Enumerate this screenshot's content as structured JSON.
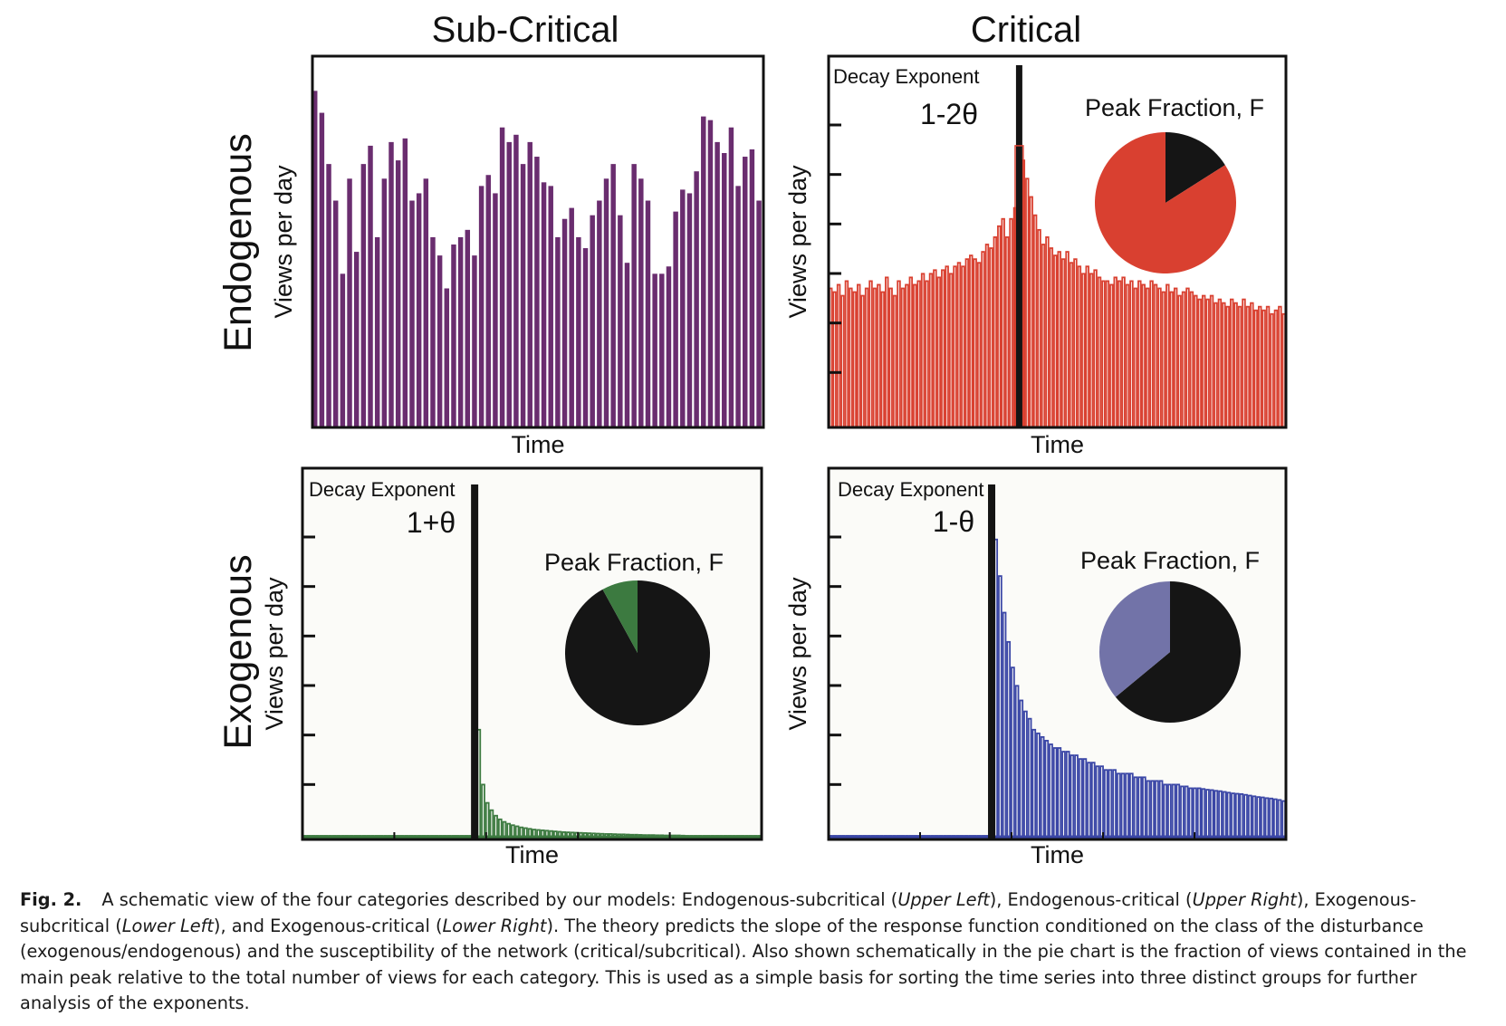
{
  "figure": {
    "column_titles": [
      "Sub-Critical",
      "Critical"
    ],
    "row_titles": [
      "Endogenous",
      "Exogenous"
    ],
    "xlabel": "Time",
    "ylabel": "Views per day",
    "colors": {
      "endogenous_subcritical": "#6a2d6f",
      "endogenous_critical": "#d94030",
      "exogenous_subcritical": "#3c7a40",
      "exogenous_critical": "#3a46a6",
      "pie_black": "#151515",
      "pie_blue": "#7273a8"
    }
  },
  "chart_data": [
    {
      "name": "endogenous-subcritical",
      "type": "bar",
      "title": "Sub-Critical",
      "row_label": "Endogenous",
      "xlabel": "Time",
      "ylabel": "Views per day",
      "ylim": [
        0,
        100
      ],
      "values": [
        92,
        86,
        72,
        62,
        42,
        68,
        48,
        72,
        77,
        52,
        68,
        78,
        73,
        79,
        62,
        64,
        68,
        52,
        47,
        38,
        50,
        52,
        54,
        47,
        66,
        69,
        64,
        82,
        78,
        80,
        72,
        78,
        74,
        67,
        66,
        52,
        57,
        60,
        52,
        49,
        58,
        62,
        68,
        72,
        58,
        45,
        72,
        68,
        62,
        42,
        42,
        44,
        59,
        65,
        64,
        70,
        85,
        84,
        78,
        75,
        82,
        66,
        74,
        76,
        62
      ],
      "annotations": []
    },
    {
      "name": "endogenous-critical",
      "type": "bar",
      "title": "Critical",
      "row_label": "Endogenous",
      "xlabel": "Time",
      "ylabel": "Views per day",
      "ylim": [
        0,
        100
      ],
      "peak_index": 47,
      "values": [
        38,
        37,
        39,
        36,
        40,
        38,
        37,
        39,
        36,
        38,
        40,
        38,
        39,
        37,
        41,
        38,
        36,
        40,
        38,
        39,
        41,
        39,
        40,
        42,
        40,
        42,
        43,
        41,
        43,
        44,
        42,
        44,
        45,
        44,
        46,
        47,
        46,
        45,
        48,
        50,
        49,
        52,
        55,
        57,
        52,
        57,
        60,
        77,
        73,
        68,
        63,
        58,
        54,
        50,
        52,
        49,
        47,
        48,
        46,
        48,
        45,
        46,
        44,
        42,
        44,
        42,
        43,
        41,
        40,
        40,
        39,
        41,
        40,
        41,
        39,
        40,
        38,
        40,
        39,
        38,
        40,
        39,
        38,
        37,
        39,
        37,
        38,
        36,
        37,
        38,
        37,
        36,
        35,
        36,
        35,
        36,
        34,
        35,
        34,
        33,
        35,
        34,
        33,
        35,
        33,
        34,
        32,
        33,
        32,
        33,
        31,
        32,
        33,
        31
      ],
      "annotations": [
        "Decay Exponent",
        "1-2θ",
        "Peak Fraction, F"
      ],
      "pie": {
        "peak_fraction": 0.16,
        "labels": [
          "peak",
          "rest"
        ],
        "colors": [
          "#151515",
          "#d94030"
        ]
      }
    },
    {
      "name": "exogenous-subcritical",
      "type": "bar",
      "title": "",
      "row_label": "Exogenous",
      "xlabel": "Time",
      "ylabel": "Views per day",
      "ylim": [
        0,
        100
      ],
      "peak_index": 40,
      "values": [
        1,
        1,
        1,
        1,
        1,
        1,
        1,
        1,
        1,
        1,
        1,
        1,
        1,
        1,
        1,
        1,
        1,
        1,
        1,
        1,
        1,
        1,
        1,
        1,
        1,
        1,
        1,
        1,
        1,
        1,
        1,
        1,
        1,
        1,
        1,
        1,
        1,
        1,
        1,
        1,
        40,
        30,
        15,
        10,
        8,
        6.5,
        5.5,
        4.8,
        4.3,
        3.9,
        3.6,
        3.3,
        3.1,
        2.9,
        2.7,
        2.6,
        2.5,
        2.4,
        2.3,
        2.2,
        2.1,
        2,
        1.95,
        1.9,
        1.85,
        1.8,
        1.75,
        1.7,
        1.65,
        1.6,
        1.55,
        1.5,
        1.5,
        1.45,
        1.4,
        1.4,
        1.35,
        1.3,
        1.3,
        1.25,
        1.2,
        1.2,
        1.2,
        1.15,
        1.15,
        1.1,
        1.1,
        1.1,
        1.1,
        1.05,
        1,
        1,
        1,
        1,
        1,
        1,
        1,
        1,
        1,
        1,
        1,
        1,
        1,
        1,
        1,
        1,
        1,
        1
      ],
      "annotations": [
        "Decay Exponent",
        "1+θ",
        "Peak Fraction, F"
      ],
      "pie": {
        "peak_fraction": 0.92,
        "labels": [
          "peak",
          "rest"
        ],
        "colors": [
          "#151515",
          "#3c7a40"
        ]
      }
    },
    {
      "name": "exogenous-critical",
      "type": "bar",
      "title": "",
      "row_label": "Exogenous",
      "xlabel": "Time",
      "ylabel": "Views per day",
      "ylim": [
        0,
        100
      ],
      "peak_index": 38,
      "values": [
        1,
        1,
        1,
        1,
        1,
        1,
        1,
        1,
        1,
        1,
        1,
        1,
        1,
        1,
        1,
        1,
        1,
        1,
        1,
        1,
        1,
        1,
        1,
        1,
        1,
        1,
        1,
        1,
        1,
        1,
        1,
        1,
        1,
        1,
        1,
        1,
        1,
        1,
        93,
        82,
        72,
        62,
        54,
        47,
        42,
        38,
        35,
        33,
        30,
        29,
        28,
        27,
        26,
        25,
        25,
        24,
        24,
        23,
        23,
        22,
        22,
        21,
        21,
        20,
        20,
        19,
        19,
        19,
        18,
        18,
        18,
        18,
        17,
        17,
        17,
        16,
        16,
        16,
        16,
        15,
        15,
        15,
        15,
        14.5,
        14.5,
        14,
        14,
        14,
        13.8,
        13.6,
        13.5,
        13.3,
        13.2,
        13,
        12.8,
        12.6,
        12.5,
        12.4,
        12.2,
        12,
        11.8,
        11.6,
        11.5,
        11.3,
        11.2,
        11,
        10.8,
        10.5
      ],
      "annotations": [
        "Decay Exponent",
        "1-θ",
        "Peak Fraction, F"
      ],
      "pie": {
        "peak_fraction": 0.64,
        "labels": [
          "peak",
          "rest"
        ],
        "colors": [
          "#151515",
          "#7273a8"
        ]
      }
    }
  ],
  "caption": {
    "label": "Fig. 2.",
    "segments": [
      {
        "text": "A schematic view of the four categories described by our models: Endogenous-subcritical (",
        "style": "normal"
      },
      {
        "text": "Upper Left",
        "style": "italic"
      },
      {
        "text": "), Endogenous-critical (",
        "style": "normal"
      },
      {
        "text": "Upper Right",
        "style": "italic"
      },
      {
        "text": "), Exogenous-subcritical (",
        "style": "normal"
      },
      {
        "text": "Lower Left",
        "style": "italic"
      },
      {
        "text": "), and Exogenous-critical (",
        "style": "normal"
      },
      {
        "text": "Lower Right",
        "style": "italic"
      },
      {
        "text": "). The theory predicts the slope of the response function conditioned on the class of the disturbance (exogenous/endogenous) and the susceptibility of the network (critical/subcritical). Also shown schematically in the pie chart is the fraction of views contained in the main peak relative to the total number of views for each category. This is used as a simple basis for sorting the time series into three distinct groups for further analysis of the exponents.",
        "style": "normal"
      }
    ]
  }
}
